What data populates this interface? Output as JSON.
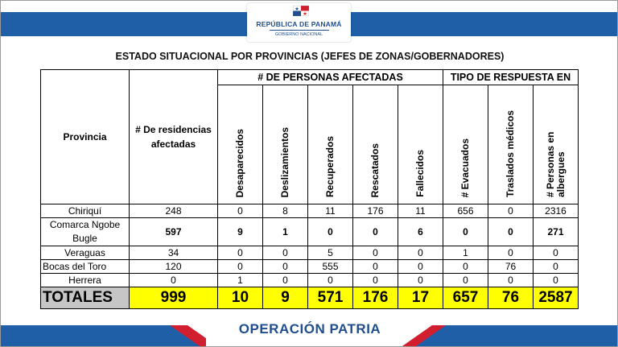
{
  "header": {
    "logo_line1": "REPÚBLICA DE PANAMÁ",
    "logo_line2": "GOBIERNO NACIONAL",
    "brand_blue": "#1f5fa8",
    "brand_red": "#d21f2f"
  },
  "title": "ESTADO SITUACIONAL POR PROVINCIAS (JEFES DE ZONAS/GOBERNADORES)",
  "table": {
    "col_provincia": "Provincia",
    "col_residencias": "# De residencias afectadas",
    "group_personas": "# DE PERSONAS AFECTADAS",
    "group_respuesta": "TIPO DE RESPUESTA EN",
    "cols": [
      "Desaparecidos",
      "Deslizamientos",
      "Recuperados",
      "Rescatados",
      "Fallecidos",
      "# Evacuados",
      "Traslados médicos",
      "# Personas en albergues"
    ],
    "rows": [
      {
        "provincia": "Chiriquí",
        "residencias": "248",
        "values": [
          "0",
          "8",
          "11",
          "176",
          "11",
          "656",
          "0",
          "2316"
        ]
      },
      {
        "provincia_l1": "Comarca Ngobe",
        "provincia_l2": "Bugle",
        "residencias": "597",
        "values": [
          "9",
          "1",
          "0",
          "0",
          "6",
          "0",
          "0",
          "271"
        ]
      },
      {
        "provincia": "Veraguas",
        "residencias": "34",
        "values": [
          "0",
          "0",
          "5",
          "0",
          "0",
          "1",
          "0",
          "0"
        ]
      },
      {
        "provincia": "Bocas del Toro",
        "residencias": "120",
        "values": [
          "0",
          "0",
          "555",
          "0",
          "0",
          "0",
          "76",
          "0"
        ]
      },
      {
        "provincia": "Herrera",
        "residencias": "0",
        "values": [
          "1",
          "0",
          "0",
          "0",
          "0",
          "0",
          "0",
          "0"
        ]
      }
    ],
    "totals": {
      "label": "TOTALES",
      "residencias": "999",
      "values": [
        "10",
        "9",
        "571",
        "176",
        "17",
        "657",
        "76",
        "2587"
      ]
    }
  },
  "footer": {
    "campaign": "OPERACIÓN PATRIA"
  }
}
